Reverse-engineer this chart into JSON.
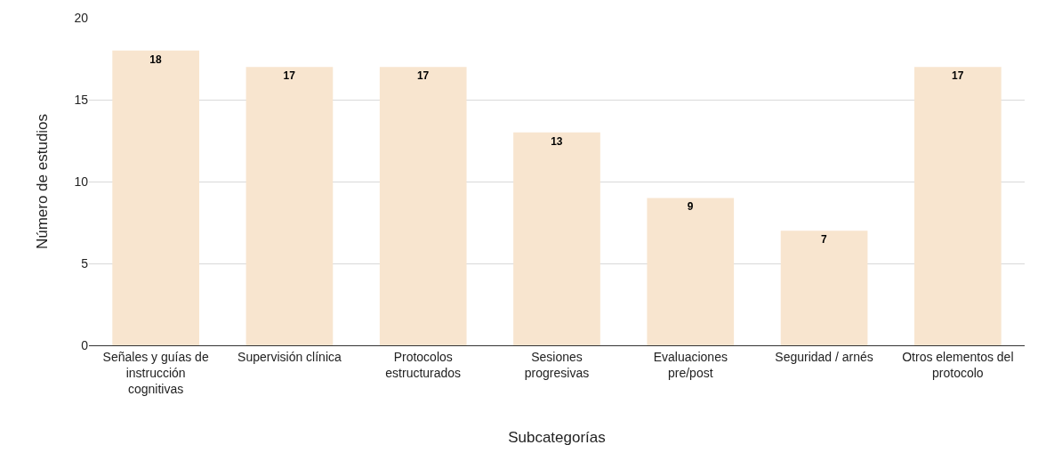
{
  "chart_data": {
    "type": "bar",
    "xlabel": "Subcategorías",
    "ylabel": "Número de estudios",
    "categories": [
      "Señales y guías de instrucción cognitivas",
      "Supervisión clínica",
      "Protocolos estructurados",
      "Sesiones progresivas",
      "Evaluaciones pre/post",
      "Seguridad / arnés",
      "Otros elementos del protocolo"
    ],
    "values": [
      18,
      17,
      17,
      13,
      9,
      7,
      17
    ],
    "color": "#f8e5cf",
    "ylim": [
      0,
      20
    ],
    "yticks": [
      0,
      5,
      10,
      15,
      20
    ],
    "grid": "y",
    "data_labels": true,
    "legend": false
  }
}
